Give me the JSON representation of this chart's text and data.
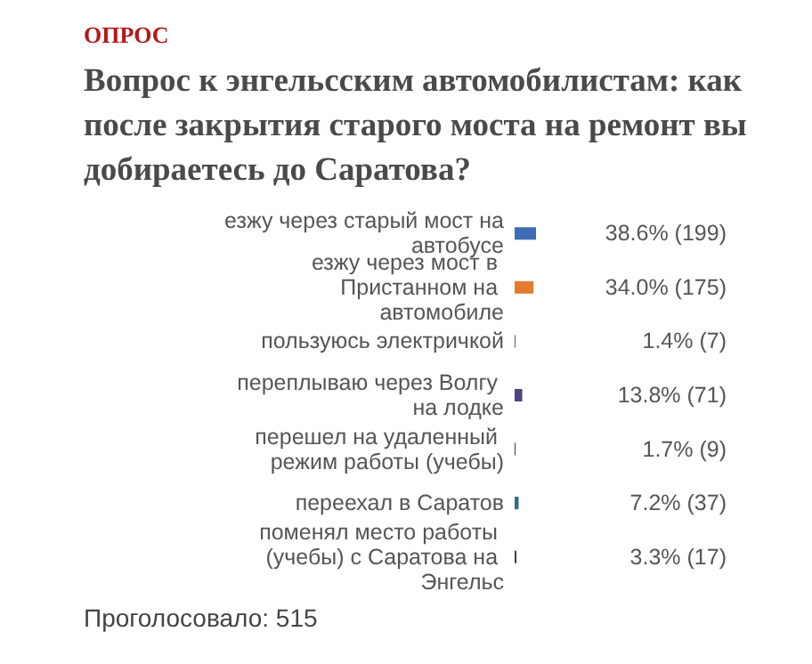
{
  "chart_data": {
    "type": "bar",
    "orientation": "horizontal",
    "title": "ОПРОС",
    "subtitle": "Вопрос к энгельсским автомобилистам: как после закрытия старого моста на ремонт вы добираетесь до Саратова?",
    "categories": [
      "езжу через старый мост на автобусе",
      "езжу через мост в Пристанном на автомобиле",
      "пользуюсь электричкой",
      "переплываю через Волгу на лодке",
      "перешел на удаленный режим работы (учебы)",
      "переехал в Саратов",
      "поменял место работы (учебы) с Саратова на Энгельс"
    ],
    "values": [
      38.6,
      34.0,
      1.4,
      13.8,
      1.7,
      7.2,
      3.3
    ],
    "value_labels": [
      "38.6% (199)",
      "34.0% (175)",
      "1.4% (7)",
      "13.8% (71)",
      "1.7% (9)",
      "7.2% (37)",
      "3.3% (17)"
    ],
    "colors": [
      "#3d6cb5",
      "#e27c2c",
      "#3a3f55",
      "#4b4682",
      "#3a3f55",
      "#2f6f80",
      "#3a3f55"
    ],
    "tick_labels": "y",
    "grid": false,
    "annotations": [
      "Проголосовало: 515"
    ]
  }
}
